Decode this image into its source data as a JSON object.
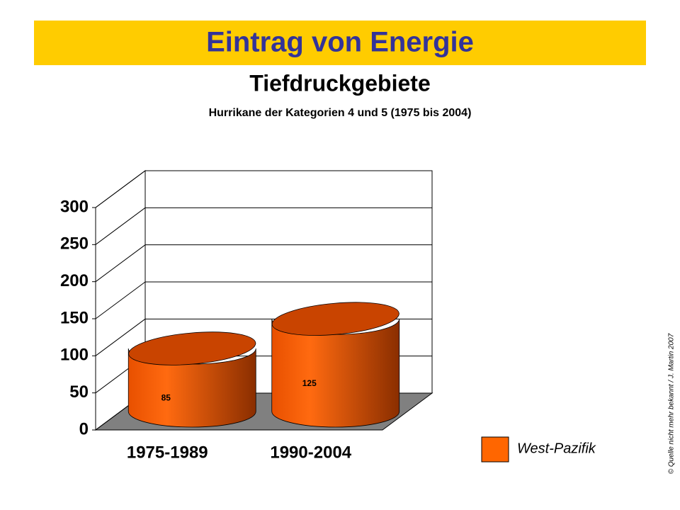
{
  "chart_data": {
    "type": "bar3d",
    "title": "Eintrag von Energie",
    "subtitle": "Tiefdruckgebiete",
    "caption": "Hurrikane der Kategorien 4 und 5 (1975 bis 2004)",
    "categories": [
      "1975-1989",
      "1990-2004"
    ],
    "series": [
      {
        "name": "West-Pazifik",
        "color": "#ff6600",
        "values": [
          85,
          125
        ]
      }
    ],
    "ylim": [
      0,
      300
    ],
    "yticks": [
      0,
      50,
      100,
      150,
      200,
      250,
      300
    ],
    "grid": true,
    "footnote": "© Quelle nicht mehr bekannt / J. Martin 2007"
  }
}
